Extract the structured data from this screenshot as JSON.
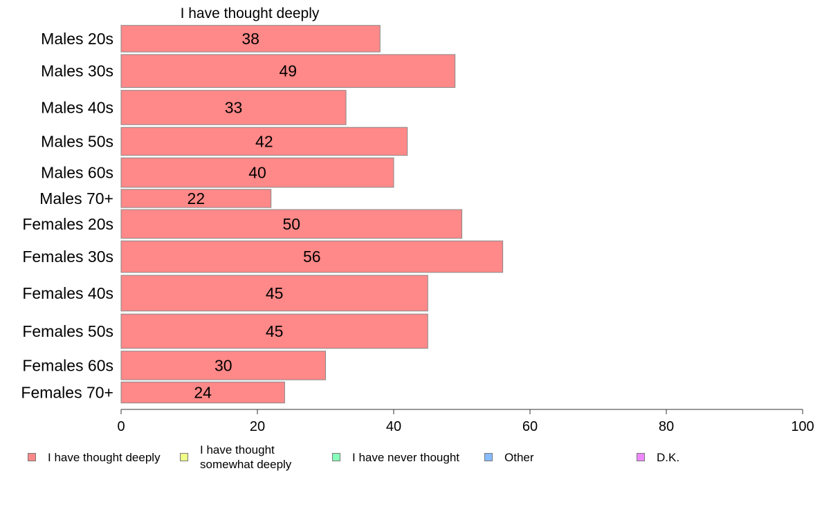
{
  "chart_data": {
    "type": "bar",
    "orientation": "horizontal",
    "title": "I have thought deeply",
    "categories": [
      "Males 20s",
      "Males 30s",
      "Males 40s",
      "Males 50s",
      "Males 60s",
      "Males 70+",
      "Females 20s",
      "Females 30s",
      "Females 40s",
      "Females 50s",
      "Females 60s",
      "Females 70+"
    ],
    "values": [
      38,
      49,
      33,
      42,
      40,
      22,
      50,
      56,
      45,
      45,
      30,
      24
    ],
    "value_labels": [
      "38",
      "49",
      "33",
      "42",
      "40",
      "22",
      "50",
      "56",
      "45",
      "45",
      "30",
      "24"
    ],
    "category_weights": [
      38,
      47,
      49,
      40,
      42,
      26,
      41,
      45,
      51,
      49,
      41,
      30
    ],
    "xlim": [
      0,
      100
    ],
    "xticks": [
      "0",
      "20",
      "40",
      "60",
      "80",
      "100"
    ],
    "grid": false,
    "bar_color": "#ff8888",
    "bar_edge_color": "#888888",
    "legend_position": "bottom",
    "legend": [
      {
        "label": "I have thought deeply",
        "color": "#ff8888"
      },
      {
        "label": "I have thought\nsomewhat deeply",
        "color": "#eeff88"
      },
      {
        "label": "I have never thought",
        "color": "#88ffbb"
      },
      {
        "label": "Other",
        "color": "#88bbff"
      },
      {
        "label": "D.K.",
        "color": "#ee88ff"
      }
    ]
  }
}
